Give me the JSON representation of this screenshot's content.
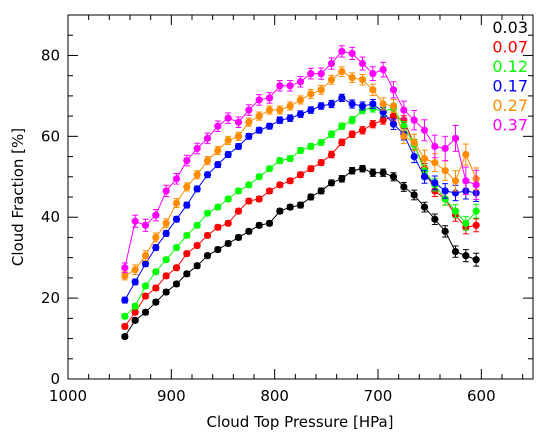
{
  "chart_data": {
    "type": "scatter",
    "xlabel": "Cloud Top Pressure [HPa]",
    "ylabel": "Cloud Fraction [%]",
    "xlim": [
      1000,
      550
    ],
    "ylim": [
      0,
      90
    ],
    "x_reversed": true,
    "grid": false,
    "legend_position": "top-right",
    "x_ticks": [
      1000,
      900,
      800,
      700,
      600
    ],
    "x_tick_labels": [
      "1000",
      "900",
      "800",
      "700",
      "600"
    ],
    "y_ticks": [
      0,
      20,
      40,
      60,
      80
    ],
    "y_tick_labels": [
      "0",
      "20",
      "40",
      "60",
      "80"
    ],
    "x": [
      945,
      935,
      925,
      915,
      905,
      895,
      885,
      875,
      865,
      855,
      845,
      835,
      825,
      815,
      805,
      795,
      785,
      775,
      765,
      755,
      745,
      735,
      725,
      715,
      705,
      695,
      685,
      675,
      665,
      655,
      645,
      635,
      625,
      615,
      605
    ],
    "series": [
      {
        "name": "0.03",
        "color": "#000000",
        "values": [
          10.5,
          14.5,
          16.5,
          19.0,
          21.5,
          23.5,
          26.0,
          28.0,
          30.5,
          32.0,
          33.5,
          35.0,
          36.5,
          38.0,
          38.5,
          41.5,
          42.5,
          43.0,
          45.0,
          46.5,
          48.5,
          49.5,
          51.5,
          52.0,
          51.0,
          51.0,
          50.0,
          47.5,
          45.5,
          42.5,
          39.5,
          36.5,
          31.5,
          30.5,
          29.5
        ],
        "errors": [
          0.5,
          0.5,
          0.6,
          0.6,
          0.6,
          0.6,
          0.6,
          0.6,
          0.6,
          0.6,
          0.6,
          0.6,
          0.6,
          0.6,
          0.6,
          0.6,
          0.6,
          0.7,
          0.7,
          0.7,
          0.7,
          0.8,
          0.8,
          0.8,
          0.9,
          0.9,
          1.0,
          1.1,
          1.2,
          1.2,
          1.3,
          1.4,
          1.4,
          1.5,
          1.6
        ]
      },
      {
        "name": "0.07",
        "color": "#ff0000",
        "values": [
          13.0,
          16.5,
          20.5,
          22.5,
          25.5,
          27.5,
          31.0,
          33.0,
          35.5,
          37.5,
          38.5,
          41.5,
          44.0,
          44.5,
          46.5,
          48.0,
          49.0,
          50.5,
          52.0,
          53.5,
          55.5,
          58.5,
          60.5,
          61.5,
          63.0,
          64.0,
          65.0,
          64.0,
          58.0,
          52.0,
          46.5,
          44.5,
          40.5,
          37.5,
          38.0
        ],
        "errors": [
          0.6,
          0.6,
          0.6,
          0.6,
          0.6,
          0.6,
          0.6,
          0.6,
          0.6,
          0.6,
          0.6,
          0.6,
          0.6,
          0.6,
          0.6,
          0.6,
          0.6,
          0.7,
          0.7,
          0.7,
          0.8,
          0.8,
          0.8,
          0.9,
          0.9,
          1.0,
          1.0,
          1.1,
          1.2,
          1.3,
          1.4,
          1.5,
          1.5,
          1.6,
          1.6
        ]
      },
      {
        "name": "0.12",
        "color": "#00ff00",
        "values": [
          15.5,
          18.0,
          23.0,
          26.5,
          29.5,
          32.5,
          35.5,
          38.0,
          41.0,
          42.5,
          44.5,
          46.5,
          48.0,
          50.0,
          52.0,
          54.0,
          54.5,
          56.5,
          57.5,
          58.5,
          60.5,
          62.5,
          64.0,
          66.5,
          67.0,
          66.0,
          67.0,
          62.5,
          58.0,
          51.5,
          48.0,
          44.5,
          41.5,
          38.5,
          41.5
        ],
        "errors": [
          0.6,
          0.6,
          0.6,
          0.6,
          0.6,
          0.6,
          0.6,
          0.6,
          0.6,
          0.6,
          0.6,
          0.6,
          0.6,
          0.6,
          0.6,
          0.7,
          0.7,
          0.7,
          0.7,
          0.7,
          0.8,
          0.8,
          0.9,
          0.9,
          1.0,
          1.0,
          1.1,
          1.2,
          1.3,
          1.4,
          1.5,
          1.5,
          1.6,
          1.7,
          1.7
        ]
      },
      {
        "name": "0.17",
        "color": "#0000ff",
        "values": [
          19.5,
          24.0,
          28.5,
          32.5,
          36.0,
          39.5,
          43.0,
          47.0,
          50.5,
          53.0,
          55.5,
          57.5,
          60.0,
          61.5,
          62.5,
          64.0,
          64.5,
          65.5,
          66.5,
          67.5,
          68.0,
          69.5,
          68.0,
          67.5,
          68.0,
          66.0,
          63.0,
          60.5,
          55.0,
          50.0,
          48.5,
          46.5,
          46.0,
          46.5,
          46.0
        ],
        "errors": [
          0.7,
          0.7,
          0.7,
          0.7,
          0.7,
          0.7,
          0.7,
          0.7,
          0.7,
          0.7,
          0.7,
          0.7,
          0.7,
          0.7,
          0.7,
          0.8,
          0.8,
          0.8,
          0.8,
          0.8,
          0.9,
          0.9,
          1.0,
          1.0,
          1.1,
          1.2,
          1.3,
          1.4,
          1.5,
          1.6,
          1.7,
          1.8,
          1.9,
          2.0,
          2.1
        ]
      },
      {
        "name": "0.27",
        "color": "#ff8c00",
        "values": [
          25.5,
          27.0,
          30.5,
          35.0,
          38.5,
          43.5,
          47.5,
          50.5,
          54.0,
          56.5,
          59.0,
          60.0,
          63.5,
          65.0,
          66.5,
          66.5,
          67.5,
          69.0,
          70.5,
          71.5,
          74.0,
          76.0,
          74.5,
          74.0,
          71.5,
          68.0,
          67.5,
          60.0,
          58.5,
          54.5,
          53.5,
          51.5,
          49.0,
          55.5,
          49.5
        ],
        "errors": [
          1.0,
          1.2,
          1.2,
          1.1,
          1.1,
          1.1,
          1.0,
          1.0,
          1.0,
          1.0,
          1.0,
          1.0,
          1.0,
          1.0,
          1.0,
          1.0,
          1.0,
          1.0,
          1.1,
          1.1,
          1.1,
          1.2,
          1.2,
          1.3,
          1.4,
          1.5,
          1.6,
          1.8,
          2.0,
          2.1,
          2.2,
          2.4,
          2.5,
          2.6,
          2.7
        ]
      },
      {
        "name": "0.37",
        "color": "#ff00ff",
        "values": [
          27.5,
          39.0,
          38.0,
          40.5,
          46.5,
          49.5,
          54.0,
          57.0,
          59.5,
          62.5,
          64.5,
          63.5,
          66.5,
          69.0,
          69.5,
          72.5,
          72.5,
          73.5,
          75.5,
          75.5,
          78.0,
          81.0,
          80.5,
          78.0,
          75.5,
          76.5,
          71.5,
          66.5,
          64.0,
          61.5,
          57.5,
          57.0,
          59.5,
          49.0,
          48.0
        ],
        "errors": [
          1.2,
          1.5,
          1.5,
          1.4,
          1.4,
          1.3,
          1.3,
          1.3,
          1.3,
          1.3,
          1.3,
          1.3,
          1.3,
          1.3,
          1.3,
          1.3,
          1.3,
          1.3,
          1.3,
          1.4,
          1.4,
          1.4,
          1.5,
          1.6,
          1.7,
          1.8,
          2.0,
          2.2,
          2.4,
          2.6,
          2.8,
          3.0,
          3.2,
          3.4,
          3.6
        ]
      }
    ]
  }
}
